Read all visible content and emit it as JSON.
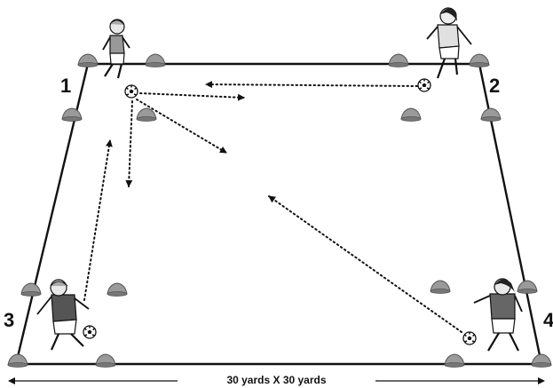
{
  "diagram": {
    "corner_labels": [
      "1",
      "2",
      "3",
      "4"
    ],
    "field_size_label": "30 yards X 30 yards",
    "colors": {
      "line": "#111111",
      "cone": "#9a9a9a",
      "cone_edge": "#555555",
      "shirt_dark": "#555555",
      "shirt_light": "#bbbbbb"
    },
    "icons": [
      "player-icon",
      "soccer-ball-icon",
      "cone-icon"
    ]
  }
}
